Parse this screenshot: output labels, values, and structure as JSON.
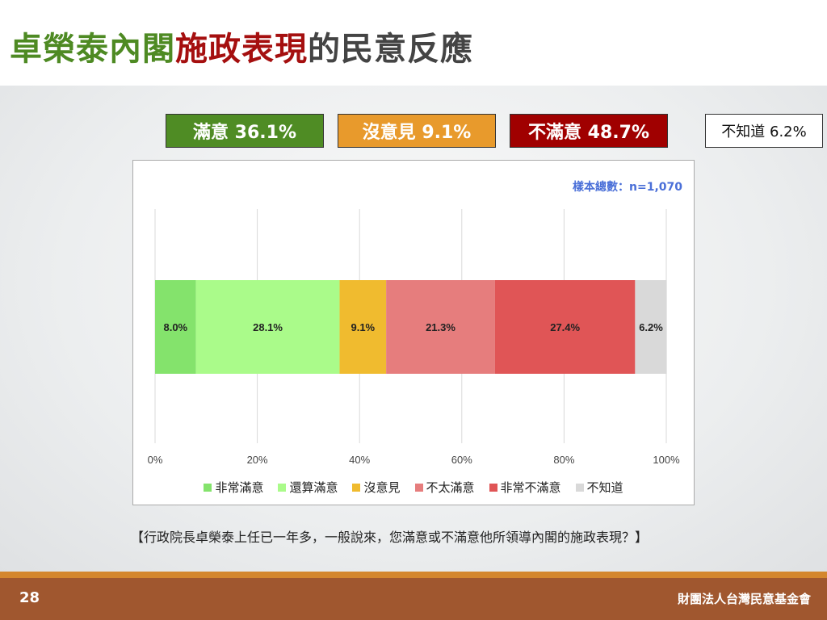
{
  "title": {
    "part1": "卓榮泰內閣",
    "part2": "施政表現",
    "part3": "的民意反應"
  },
  "summary": [
    {
      "label": "滿意 36.1%",
      "color": "#4f8c24",
      "text": "#ffffff"
    },
    {
      "label": "沒意見 9.1%",
      "color": "#e89a2c",
      "text": "#ffffff"
    },
    {
      "label": "不滿意 48.7%",
      "color": "#a00000",
      "text": "#ffffff"
    },
    {
      "label": "不知道 6.2%",
      "color": "#ffffff",
      "text": "#111111"
    }
  ],
  "sample": "樣本總數：n=1,070",
  "chart_data": {
    "type": "bar",
    "orientation": "horizontal",
    "stacked": true,
    "categories": [
      "非常滿意",
      "還算滿意",
      "沒意見",
      "不太滿意",
      "非常不滿意",
      "不知道"
    ],
    "values": [
      8.0,
      28.1,
      9.1,
      21.3,
      27.4,
      6.2
    ],
    "labels": [
      "8.0%",
      "28.1%",
      "9.1%",
      "21.3%",
      "27.4%",
      "6.2%"
    ],
    "colors": [
      "#84e36c",
      "#aafb8a",
      "#f0bb2f",
      "#e67d7d",
      "#e05556",
      "#d9d9d9"
    ],
    "xticks": [
      "0%",
      "20%",
      "40%",
      "60%",
      "80%",
      "100%"
    ],
    "xlim": [
      0,
      100
    ],
    "grid": true,
    "legend": "bottom"
  },
  "question": "【行政院長卓榮泰上任已一年多，一般說來，您滿意或不滿意他所領導內閣的施政表現？】",
  "footer": {
    "page": "28",
    "org": "財團法人台灣民意基金會"
  }
}
